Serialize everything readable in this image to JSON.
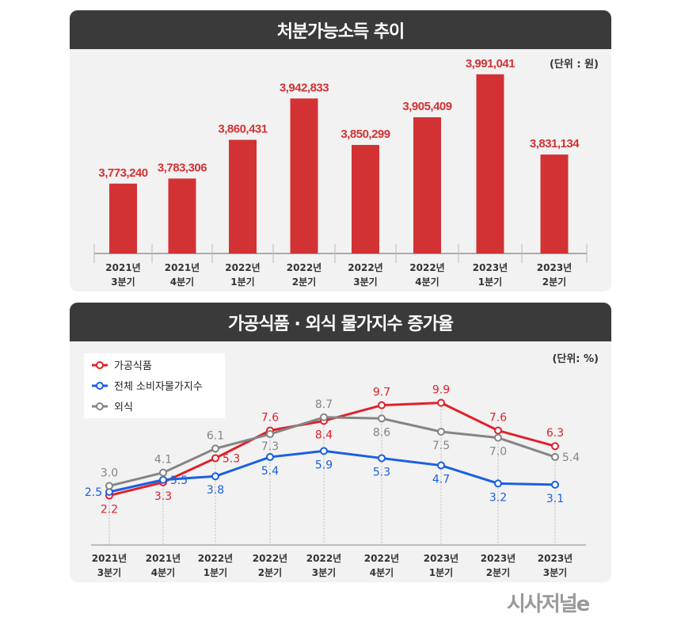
{
  "chart_data": [
    {
      "type": "bar",
      "title": "처분가능소득 추이",
      "unit_label": "(단위 : 원)",
      "categories": [
        [
          "2021년",
          "3분기"
        ],
        [
          "2021년",
          "4분기"
        ],
        [
          "2022년",
          "1분기"
        ],
        [
          "2022년",
          "2분기"
        ],
        [
          "2022년",
          "3분기"
        ],
        [
          "2022년",
          "4분기"
        ],
        [
          "2023년",
          "1분기"
        ],
        [
          "2023년",
          "2분기"
        ]
      ],
      "values": [
        3773240,
        3783306,
        3860431,
        3942833,
        3850299,
        3905409,
        3991041,
        3831134
      ],
      "data_labels": [
        "3,773,240",
        "3,783,306",
        "3,860,431",
        "3,942,833",
        "3,850,299",
        "3,905,409",
        "3,991,041",
        "3,831,134"
      ],
      "color": "#d33234"
    },
    {
      "type": "line",
      "title": "가공식품 · 외식 물가지수 증가율",
      "unit_label": "(단위: %)",
      "categories": [
        [
          "2021년",
          "3분기"
        ],
        [
          "2021년",
          "4분기"
        ],
        [
          "2022년",
          "1분기"
        ],
        [
          "2022년",
          "2분기"
        ],
        [
          "2022년",
          "3분기"
        ],
        [
          "2022년",
          "4분기"
        ],
        [
          "2023년",
          "1분기"
        ],
        [
          "2023년",
          "2분기"
        ],
        [
          "2023년",
          "3분기"
        ]
      ],
      "legend_position": "top-left",
      "series": [
        {
          "name": "가공식품",
          "color": "#e0202a",
          "values": [
            2.2,
            3.3,
            5.3,
            7.6,
            8.4,
            9.7,
            9.9,
            7.6,
            6.3
          ]
        },
        {
          "name": "전체 소비자물가지수",
          "color": "#1a5fe0",
          "values": [
            2.5,
            3.5,
            3.8,
            5.4,
            5.9,
            5.3,
            4.7,
            3.2,
            3.1
          ]
        },
        {
          "name": "외식",
          "color": "#858585",
          "values": [
            3.0,
            4.1,
            6.1,
            7.3,
            8.7,
            8.6,
            7.5,
            7.0,
            5.4
          ]
        }
      ]
    }
  ],
  "logo": "시사저널e"
}
